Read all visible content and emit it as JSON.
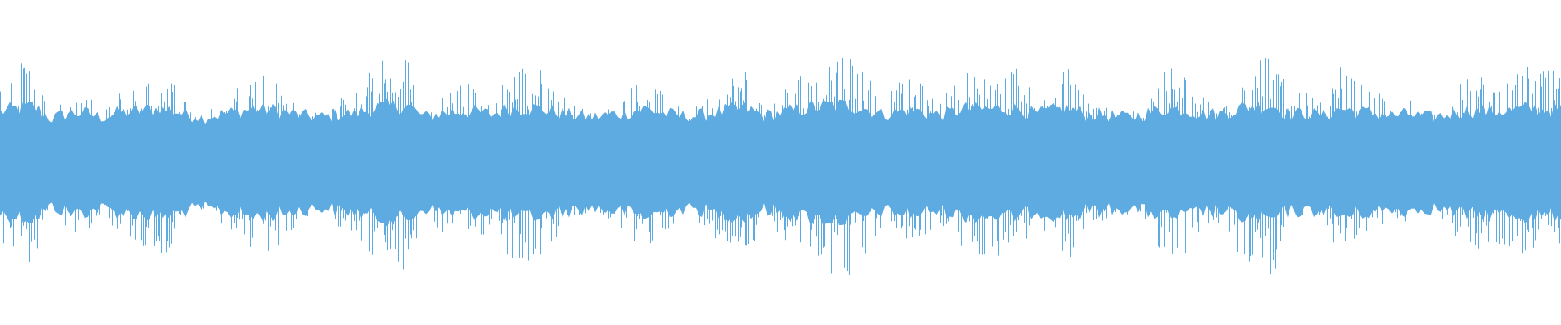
{
  "chart_data": {
    "type": "area",
    "description_kind": "audio-waveform",
    "color": "#5DABE0",
    "background": "#FFFFFF",
    "grid": false,
    "axes_visible": false,
    "ylim": [
      -1,
      1
    ],
    "envelope_peak_amplitude": [
      0.62,
      0.75,
      0.84,
      0.31,
      0.56,
      0.56,
      0.38,
      0.56,
      0.62,
      0.75,
      0.69,
      0.5,
      0.38,
      0.5,
      0.62,
      0.75,
      0.69,
      0.56,
      0.44,
      0.38,
      0.5,
      0.56,
      0.75,
      0.84,
      0.88,
      0.38,
      0.56,
      0.62,
      0.62,
      0.5,
      0.75,
      0.78,
      0.72,
      0.56,
      0.44,
      0.38,
      0.5,
      0.56,
      0.75,
      0.56,
      0.44,
      0.44,
      0.56,
      0.69,
      0.75,
      0.44,
      0.56,
      0.69,
      0.81,
      0.88,
      0.88,
      0.75,
      0.5,
      0.62,
      0.66,
      0.5,
      0.56,
      0.75,
      0.72,
      0.75,
      0.75,
      0.5,
      0.66,
      0.75,
      0.5,
      0.5,
      0.38,
      0.44,
      0.62,
      0.75,
      0.69,
      0.5,
      0.53,
      0.75,
      0.88,
      0.88,
      0.5,
      0.56,
      0.44,
      0.75,
      0.62,
      0.56,
      0.44,
      0.5,
      0.38,
      0.44,
      0.62,
      0.69,
      0.62,
      0.66,
      0.75,
      0.72,
      0.7
    ],
    "envelope_core_amplitude": 0.3
  }
}
